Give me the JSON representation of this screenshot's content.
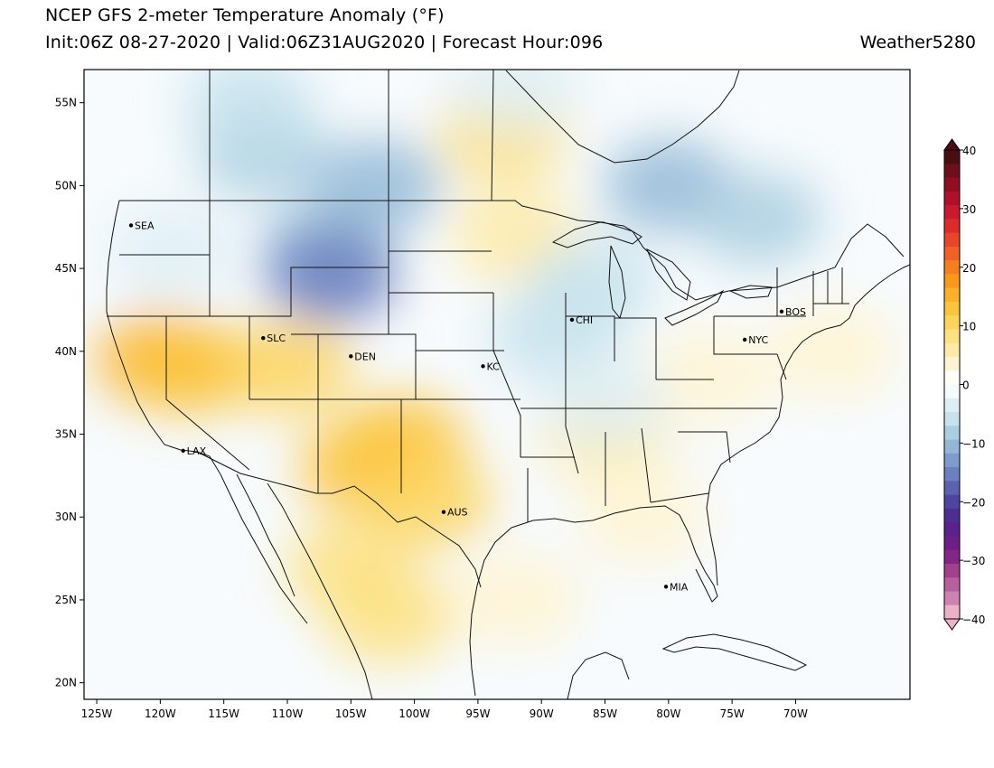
{
  "header": {
    "title": "NCEP GFS 2-meter Temperature Anomaly (°F)",
    "subtitle": "Init:06Z 08-27-2020 | Valid:06Z31AUG2020 | Forecast Hour:096",
    "brand": "Weather5280"
  },
  "map": {
    "lon_range": [
      -126,
      -61
    ],
    "lat_range": [
      19,
      57
    ],
    "lat_ticks": [
      {
        "value": 55,
        "label": "55N"
      },
      {
        "value": 50,
        "label": "50N"
      },
      {
        "value": 45,
        "label": "45N"
      },
      {
        "value": 40,
        "label": "40N"
      },
      {
        "value": 35,
        "label": "35N"
      },
      {
        "value": 30,
        "label": "30N"
      },
      {
        "value": 25,
        "label": "25N"
      },
      {
        "value": 20,
        "label": "20N"
      }
    ],
    "lon_ticks": [
      {
        "value": -125,
        "label": "125W"
      },
      {
        "value": -120,
        "label": "120W"
      },
      {
        "value": -115,
        "label": "115W"
      },
      {
        "value": -110,
        "label": "110W"
      },
      {
        "value": -105,
        "label": "105W"
      },
      {
        "value": -100,
        "label": "100W"
      },
      {
        "value": -95,
        "label": "95W"
      },
      {
        "value": -90,
        "label": "90W"
      },
      {
        "value": -85,
        "label": "85W"
      },
      {
        "value": -80,
        "label": "80W"
      },
      {
        "value": -75,
        "label": "75W"
      },
      {
        "value": -70,
        "label": "70W"
      }
    ],
    "cities": [
      {
        "label": "SEA",
        "lon": -122.3,
        "lat": 47.6
      },
      {
        "label": "SLC",
        "lon": -111.9,
        "lat": 40.8
      },
      {
        "label": "DEN",
        "lon": -105.0,
        "lat": 39.7
      },
      {
        "label": "KC",
        "lon": -94.6,
        "lat": 39.1
      },
      {
        "label": "CHI",
        "lon": -87.6,
        "lat": 41.9
      },
      {
        "label": "NYC",
        "lon": -74.0,
        "lat": 40.7
      },
      {
        "label": "BOS",
        "lon": -71.1,
        "lat": 42.4
      },
      {
        "label": "LAX",
        "lon": -118.2,
        "lat": 34.0
      },
      {
        "label": "AUS",
        "lon": -97.7,
        "lat": 30.3
      },
      {
        "label": "MIA",
        "lon": -80.2,
        "lat": 25.8
      }
    ],
    "anomaly_blobs": [
      {
        "lon": -120,
        "lat": 39.5,
        "value": 14
      },
      {
        "lon": -117.5,
        "lat": 39,
        "value": 12
      },
      {
        "lon": -110,
        "lat": 39,
        "value": 10
      },
      {
        "lon": -104,
        "lat": 33,
        "value": 12
      },
      {
        "lon": -101,
        "lat": 34.5,
        "value": 12
      },
      {
        "lon": -99,
        "lat": 31,
        "value": 9
      },
      {
        "lon": -105,
        "lat": 27,
        "value": 8
      },
      {
        "lon": -102,
        "lat": 24,
        "value": 7
      },
      {
        "lon": -93,
        "lat": 53,
        "value": 8
      },
      {
        "lon": -92,
        "lat": 47,
        "value": 4
      },
      {
        "lon": -85,
        "lat": 35,
        "value": 4
      },
      {
        "lon": -82,
        "lat": 30,
        "value": 3
      },
      {
        "lon": -77,
        "lat": 38.5,
        "value": 3
      },
      {
        "lon": -67,
        "lat": 40,
        "value": 3
      },
      {
        "lon": -92,
        "lat": 25,
        "value": 3
      },
      {
        "lon": -112,
        "lat": 52,
        "value": -8
      },
      {
        "lon": -107,
        "lat": 46,
        "value": -10
      },
      {
        "lon": -106.5,
        "lat": 44.5,
        "value": -16
      },
      {
        "lon": -103,
        "lat": 50,
        "value": -9
      },
      {
        "lon": -80,
        "lat": 50,
        "value": -9
      },
      {
        "lon": -73,
        "lat": 48,
        "value": -7
      },
      {
        "lon": -86,
        "lat": 44,
        "value": -5
      },
      {
        "lon": -89,
        "lat": 41,
        "value": -4
      },
      {
        "lon": -119,
        "lat": 46,
        "value": -3
      },
      {
        "lon": -113,
        "lat": 55,
        "value": -6
      },
      {
        "lon": -92,
        "lat": 56,
        "value": -3
      },
      {
        "lon": -85,
        "lat": 37,
        "value": -2
      }
    ]
  },
  "colorbar": {
    "ticks": [
      {
        "value": 40,
        "label": "40"
      },
      {
        "value": 30,
        "label": "30"
      },
      {
        "value": 20,
        "label": "20"
      },
      {
        "value": 10,
        "label": "10"
      },
      {
        "value": 0,
        "label": "0"
      },
      {
        "value": -10,
        "label": "−10"
      },
      {
        "value": -20,
        "label": "−20"
      },
      {
        "value": -30,
        "label": "−30"
      },
      {
        "value": -40,
        "label": "−40"
      }
    ],
    "levels": [
      {
        "value": 40,
        "color": "#4a0d12"
      },
      {
        "value": 37.5,
        "color": "#6d0f1c"
      },
      {
        "value": 35,
        "color": "#8f0e22"
      },
      {
        "value": 32.5,
        "color": "#b0102a"
      },
      {
        "value": 30,
        "color": "#c91a2e"
      },
      {
        "value": 27.5,
        "color": "#dd2a2c"
      },
      {
        "value": 25,
        "color": "#e8452a"
      },
      {
        "value": 22.5,
        "color": "#f06127"
      },
      {
        "value": 20,
        "color": "#f57f20"
      },
      {
        "value": 17.5,
        "color": "#f8991d"
      },
      {
        "value": 15,
        "color": "#fab129"
      },
      {
        "value": 12.5,
        "color": "#fbc43d"
      },
      {
        "value": 10,
        "color": "#fdd35c"
      },
      {
        "value": 7.5,
        "color": "#fde080"
      },
      {
        "value": 5,
        "color": "#feeaa6"
      },
      {
        "value": 2.5,
        "color": "#fff4d1"
      },
      {
        "value": 0.5,
        "color": "#fffdf6"
      },
      {
        "value": -0.5,
        "color": "#f4fafd"
      },
      {
        "value": -2.5,
        "color": "#deeef5"
      },
      {
        "value": -5,
        "color": "#c6e2ec"
      },
      {
        "value": -7.5,
        "color": "#aacfe0"
      },
      {
        "value": -10,
        "color": "#93b8d6"
      },
      {
        "value": -12.5,
        "color": "#7e9ccb"
      },
      {
        "value": -15,
        "color": "#6c80bf"
      },
      {
        "value": -17.5,
        "color": "#5b62b0"
      },
      {
        "value": -20,
        "color": "#4d45a0"
      },
      {
        "value": -22.5,
        "color": "#4d2f93"
      },
      {
        "value": -25,
        "color": "#5a228a"
      },
      {
        "value": -27.5,
        "color": "#6e1f86"
      },
      {
        "value": -30,
        "color": "#862588"
      },
      {
        "value": -32.5,
        "color": "#a0408f"
      },
      {
        "value": -35,
        "color": "#b85f9e"
      },
      {
        "value": -37.5,
        "color": "#cd82b0"
      },
      {
        "value": -40,
        "color": "#ebb2c7"
      }
    ]
  },
  "colors": {
    "land_base": "#fbfdff",
    "ocean_base": "#f6f9fc",
    "boundary": "#111111"
  }
}
